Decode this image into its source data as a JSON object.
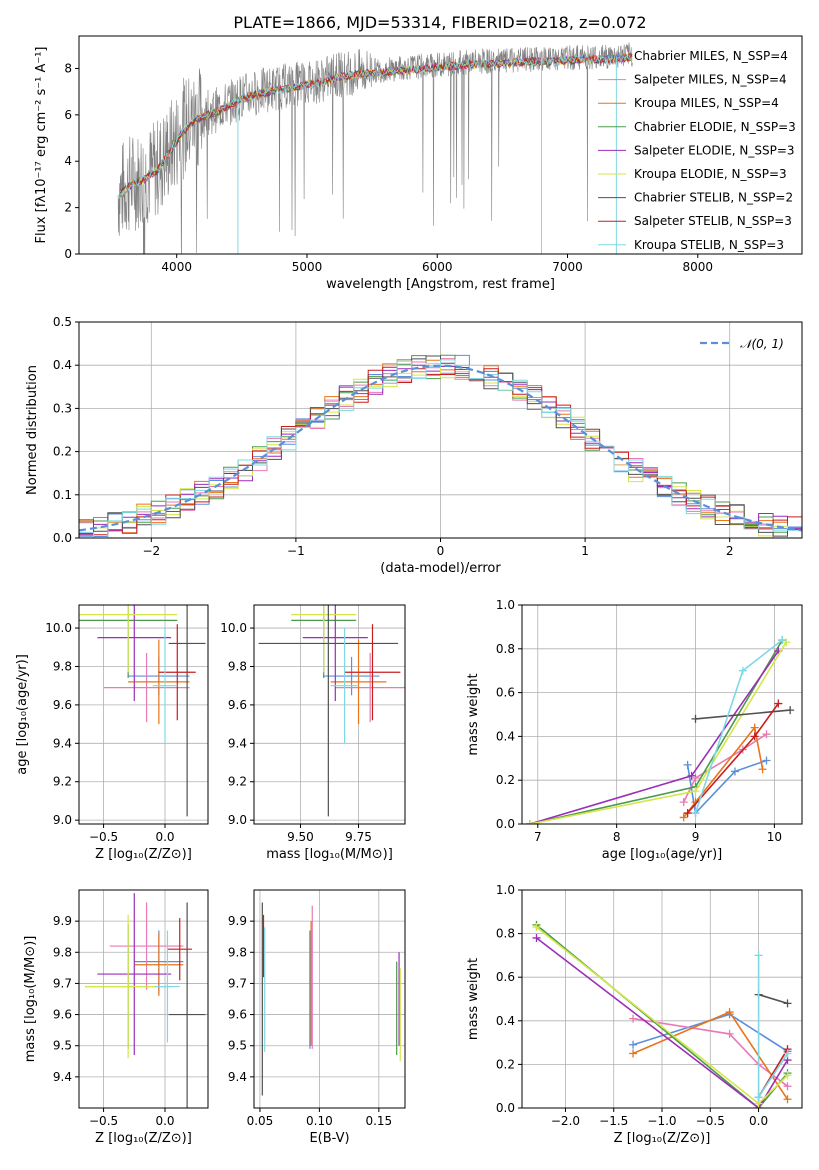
{
  "colors": {
    "Chabrier MILES": "#5b8fdb",
    "Salpeter MILES": "#e87ab4",
    "Kroupa MILES": "#e8741c",
    "Chabrier ELODIE": "#4c9a4c",
    "Salpeter ELODIE": "#9b2fb8",
    "Kroupa ELODIE": "#d4e64a",
    "Chabrier STELIB": "#505050",
    "Salpeter STELIB": "#c81e1e",
    "Kroupa STELIB": "#7fd8e4",
    "data": "#808080",
    "normal": "#5b8fdb"
  },
  "chart_data": [
    {
      "id": "spectrum",
      "type": "line",
      "title": "PLATE=1866, MJD=53314, FIBERID=0218, z=0.072",
      "xlabel": "wavelength [Angstrom, rest frame]",
      "ylabel": "Flux [fλ10⁻¹⁷ erg cm⁻² s⁻¹ A⁻¹]",
      "xlim": [
        3250,
        8800
      ],
      "ylim": [
        0,
        9.4
      ],
      "xticks": [
        "4000",
        "5000",
        "6000",
        "7000",
        "8000"
      ],
      "yticks": [
        "0",
        "2",
        "4",
        "6",
        "8"
      ],
      "legend_position": "right",
      "legend": [
        "Chabrier MILES, N_SSP=4",
        "Salpeter MILES, N_SSP=4",
        "Kroupa MILES, N_SSP=4",
        "Chabrier ELODIE, N_SSP=3",
        "Salpeter ELODIE, N_SSP=3",
        "Kroupa ELODIE, N_SSP=3",
        "Chabrier STELIB, N_SSP=2",
        "Salpeter STELIB, N_SSP=3",
        "Kroupa STELIB, N_SSP=3"
      ],
      "continuum": {
        "x": [
          3550,
          3650,
          3750,
          3850,
          3950,
          4050,
          4150,
          4300,
          4500,
          4700,
          4900,
          5100,
          5300,
          5500,
          5700,
          5900,
          6100,
          6300,
          6500,
          6700,
          6900,
          7100,
          7300,
          7500
        ],
        "y": [
          2.6,
          3.1,
          3.3,
          3.7,
          4.5,
          5.4,
          5.9,
          6.2,
          6.8,
          7.1,
          7.3,
          7.5,
          7.8,
          7.9,
          8.0,
          8.1,
          8.2,
          8.3,
          8.3,
          8.4,
          8.4,
          8.5,
          8.5,
          8.6
        ]
      }
    },
    {
      "id": "residuals",
      "type": "step",
      "xlabel": "(data-model)/error",
      "ylabel": "Normed distribution",
      "xlim": [
        -2.5,
        2.5
      ],
      "ylim": [
        0,
        0.5
      ],
      "xticks": [
        "−2",
        "−1",
        "0",
        "1",
        "2"
      ],
      "yticks": [
        "0.0",
        "0.1",
        "0.2",
        "0.3",
        "0.4",
        "0.5"
      ],
      "legend_position": "top-right",
      "legend": [
        "𝒩(0, 1)"
      ]
    },
    {
      "id": "age-vs-Z",
      "type": "errorbar",
      "xlabel": "Z [log₁₀(Z/Z⊙)]",
      "ylabel": "age  [log₁₀(age/yr)]",
      "xlim": [
        -0.7,
        0.35
      ],
      "ylim": [
        8.98,
        10.12
      ],
      "xticks": [
        "−0.5",
        "0.0"
      ],
      "yticks": [
        "9.0",
        "9.2",
        "9.4",
        "9.6",
        "9.8",
        "10.0"
      ],
      "points": [
        {
          "series": "Chabrier MILES",
          "x": -0.05,
          "xe": 0.25,
          "y": 9.75,
          "ye": 0.1
        },
        {
          "series": "Salpeter MILES",
          "x": -0.15,
          "xe": 0.35,
          "y": 9.69,
          "ye": 0.18
        },
        {
          "series": "Kroupa MILES",
          "x": -0.05,
          "xe": 0.25,
          "y": 9.72,
          "ye": 0.22
        },
        {
          "series": "Chabrier ELODIE",
          "x": -0.3,
          "xe": 0.4,
          "y": 10.04,
          "ye": 0.3
        },
        {
          "series": "Salpeter ELODIE",
          "x": -0.25,
          "xe": 0.3,
          "y": 9.95,
          "ye": 0.33
        },
        {
          "series": "Kroupa ELODIE",
          "x": -0.3,
          "xe": 0.4,
          "y": 10.07,
          "ye": 0.3
        },
        {
          "series": "Chabrier STELIB",
          "x": 0.18,
          "xe": 0.15,
          "y": 9.92,
          "ye": 0.9
        },
        {
          "series": "Salpeter STELIB",
          "x": 0.1,
          "xe": 0.15,
          "y": 9.77,
          "ye": 0.25
        },
        {
          "series": "Kroupa STELIB",
          "x": 0.0,
          "xe": 0.1,
          "y": 9.7,
          "ye": 0.3
        }
      ]
    },
    {
      "id": "age-vs-mass",
      "type": "errorbar",
      "xlabel": "mass [log₁₀(M/M⊙)]",
      "xlim": [
        9.3,
        9.95
      ],
      "ylim": [
        8.98,
        10.12
      ],
      "xticks": [
        "9.50",
        "9.75"
      ],
      "yticks": [
        "9.0",
        "9.2",
        "9.4",
        "9.6",
        "9.8",
        "10.0"
      ],
      "points": [
        {
          "series": "Chabrier MILES",
          "x": 9.72,
          "xe": 0.12,
          "y": 9.75,
          "ye": 0.1
        },
        {
          "series": "Salpeter MILES",
          "x": 9.8,
          "xe": 0.15,
          "y": 9.69,
          "ye": 0.18
        },
        {
          "series": "Kroupa MILES",
          "x": 9.75,
          "xe": 0.12,
          "y": 9.72,
          "ye": 0.22
        },
        {
          "series": "Chabrier ELODIE",
          "x": 9.6,
          "xe": 0.14,
          "y": 10.04,
          "ye": 0.3
        },
        {
          "series": "Salpeter ELODIE",
          "x": 9.65,
          "xe": 0.14,
          "y": 9.95,
          "ye": 0.33
        },
        {
          "series": "Kroupa ELODIE",
          "x": 9.6,
          "xe": 0.14,
          "y": 10.07,
          "ye": 0.3
        },
        {
          "series": "Chabrier STELIB",
          "x": 9.62,
          "xe": 0.3,
          "y": 9.92,
          "ye": 0.9
        },
        {
          "series": "Salpeter STELIB",
          "x": 9.81,
          "xe": 0.12,
          "y": 9.77,
          "ye": 0.25
        },
        {
          "series": "Kroupa STELIB",
          "x": 9.69,
          "xe": 0.06,
          "y": 9.7,
          "ye": 0.3
        }
      ]
    },
    {
      "id": "weight-vs-age",
      "type": "line",
      "xlabel": "age  [log₁₀(age/yr)]",
      "ylabel": "mass weight",
      "xlim": [
        6.8,
        10.35
      ],
      "ylim": [
        0,
        1.0
      ],
      "xticks": [
        "7",
        "8",
        "9",
        "10"
      ],
      "yticks": [
        "0.0",
        "0.2",
        "0.4",
        "0.6",
        "0.8",
        "1.0"
      ],
      "series": [
        {
          "name": "Chabrier MILES",
          "x": [
            8.9,
            9.0,
            9.5,
            9.9
          ],
          "y": [
            0.27,
            0.05,
            0.24,
            0.29
          ]
        },
        {
          "name": "Salpeter MILES",
          "x": [
            8.85,
            9.0,
            9.6,
            9.9
          ],
          "y": [
            0.1,
            0.21,
            0.34,
            0.41
          ]
        },
        {
          "name": "Kroupa MILES",
          "x": [
            8.85,
            9.0,
            9.75,
            9.85
          ],
          "y": [
            0.03,
            0.1,
            0.44,
            0.25
          ]
        },
        {
          "name": "Chabrier ELODIE",
          "x": [
            6.9,
            9.0,
            10.1
          ],
          "y": [
            0.0,
            0.17,
            0.84
          ]
        },
        {
          "name": "Salpeter ELODIE",
          "x": [
            6.9,
            8.95,
            10.05
          ],
          "y": [
            0.0,
            0.22,
            0.79
          ]
        },
        {
          "name": "Kroupa ELODIE",
          "x": [
            6.9,
            9.0,
            10.15
          ],
          "y": [
            0.0,
            0.15,
            0.83
          ]
        },
        {
          "name": "Chabrier STELIB",
          "x": [
            9.0,
            10.2
          ],
          "y": [
            0.48,
            0.52
          ]
        },
        {
          "name": "Salpeter STELIB",
          "x": [
            8.9,
            9.75,
            10.05
          ],
          "y": [
            0.05,
            0.4,
            0.55
          ]
        },
        {
          "name": "Kroupa STELIB",
          "x": [
            9.0,
            9.6,
            10.1
          ],
          "y": [
            0.05,
            0.7,
            0.84
          ]
        }
      ]
    },
    {
      "id": "mass-vs-Z",
      "type": "errorbar",
      "xlabel": "Z [log₁₀(Z/Z⊙)]",
      "ylabel": "mass [log₁₀(M/M⊙)]",
      "xlim": [
        -0.7,
        0.35
      ],
      "ylim": [
        9.3,
        10.0
      ],
      "xticks": [
        "−0.5",
        "0.0"
      ],
      "yticks": [
        "9.4",
        "9.5",
        "9.6",
        "9.7",
        "9.8",
        "9.9"
      ],
      "points": [
        {
          "series": "Chabrier MILES",
          "x": -0.05,
          "xe": 0.2,
          "y": 9.77,
          "ye": 0.1
        },
        {
          "series": "Salpeter MILES",
          "x": -0.15,
          "xe": 0.3,
          "y": 9.82,
          "ye": 0.14
        },
        {
          "series": "Kroupa MILES",
          "x": -0.05,
          "xe": 0.2,
          "y": 9.76,
          "ye": 0.1
        },
        {
          "series": "Chabrier ELODIE",
          "x": -0.3,
          "xe": 0.35,
          "y": 9.69,
          "ye": 0.2
        },
        {
          "series": "Salpeter ELODIE",
          "x": -0.25,
          "xe": 0.3,
          "y": 9.73,
          "ye": 0.26
        },
        {
          "series": "Kroupa ELODIE",
          "x": -0.3,
          "xe": 0.35,
          "y": 9.69,
          "ye": 0.23
        },
        {
          "series": "Chabrier STELIB",
          "x": 0.18,
          "xe": 0.15,
          "y": 9.6,
          "ye": 0.36
        },
        {
          "series": "Salpeter STELIB",
          "x": 0.12,
          "xe": 0.1,
          "y": 9.81,
          "ye": 0.1
        },
        {
          "series": "Kroupa STELIB",
          "x": 0.02,
          "xe": 0.1,
          "y": 9.69,
          "ye": 0.18
        }
      ]
    },
    {
      "id": "mass-vs-EBV",
      "type": "errorbar",
      "xlabel": "E(B-V)",
      "xlim": [
        0.045,
        0.172
      ],
      "ylim": [
        9.3,
        10.0
      ],
      "xticks": [
        "0.05",
        "0.10",
        "0.15"
      ],
      "yticks": [
        "9.4",
        "9.5",
        "9.6",
        "9.7",
        "9.8",
        "9.9"
      ],
      "points": [
        {
          "series": "Chabrier MILES",
          "x": 0.092,
          "xe": 0,
          "y": 9.68,
          "ye": 0.19
        },
        {
          "series": "Salpeter MILES",
          "x": 0.094,
          "xe": 0,
          "y": 9.72,
          "ye": 0.23
        },
        {
          "series": "Kroupa MILES",
          "x": 0.093,
          "xe": 0,
          "y": 9.7,
          "ye": 0.2
        },
        {
          "series": "Chabrier ELODIE",
          "x": 0.165,
          "xe": 0,
          "y": 9.62,
          "ye": 0.15
        },
        {
          "series": "Salpeter ELODIE",
          "x": 0.167,
          "xe": 0,
          "y": 9.65,
          "ye": 0.15
        },
        {
          "series": "Kroupa ELODIE",
          "x": 0.168,
          "xe": 0,
          "y": 9.6,
          "ye": 0.15
        },
        {
          "series": "Chabrier STELIB",
          "x": 0.052,
          "xe": 0,
          "y": 9.65,
          "ye": 0.31
        },
        {
          "series": "Salpeter STELIB",
          "x": 0.053,
          "xe": 0,
          "y": 9.82,
          "ye": 0.1
        },
        {
          "series": "Kroupa STELIB",
          "x": 0.054,
          "xe": 0,
          "y": 9.68,
          "ye": 0.2
        }
      ]
    },
    {
      "id": "weight-vs-Z",
      "type": "line",
      "xlabel": "Z [log₁₀(Z/Z⊙)]",
      "ylabel": "mass weight",
      "xlim": [
        -2.45,
        0.45
      ],
      "ylim": [
        0,
        1.0
      ],
      "xticks": [
        "−2.0",
        "−1.5",
        "−1.0",
        "−0.5",
        "0.0"
      ],
      "yticks": [
        "0.0",
        "0.2",
        "0.4",
        "0.6",
        "0.8",
        "1.0"
      ],
      "series": [
        {
          "name": "Chabrier MILES",
          "x": [
            -1.3,
            -0.3,
            0.3
          ],
          "y": [
            0.29,
            0.43,
            0.26
          ]
        },
        {
          "name": "Salpeter MILES",
          "x": [
            -1.3,
            -0.3,
            0.0,
            0.3
          ],
          "y": [
            0.41,
            0.34,
            0.2,
            0.1
          ]
        },
        {
          "name": "Kroupa MILES",
          "x": [
            -1.3,
            -0.3,
            0.3
          ],
          "y": [
            0.25,
            0.44,
            0.04
          ]
        },
        {
          "name": "Chabrier ELODIE",
          "x": [
            -2.3,
            0.0,
            0.3
          ],
          "y": [
            0.84,
            0.0,
            0.16
          ]
        },
        {
          "name": "Salpeter ELODIE",
          "x": [
            -2.3,
            0.0,
            0.3
          ],
          "y": [
            0.78,
            0.0,
            0.22
          ]
        },
        {
          "name": "Kroupa ELODIE",
          "x": [
            -2.3,
            0.0,
            0.3
          ],
          "y": [
            0.83,
            0.02,
            0.15
          ]
        },
        {
          "name": "Chabrier STELIB",
          "x": [
            0.0,
            0.3
          ],
          "y": [
            0.52,
            0.48
          ]
        },
        {
          "name": "Salpeter STELIB",
          "x": [
            0.0,
            0.3
          ],
          "y": [
            0.05,
            0.27
          ]
        },
        {
          "name": "Kroupa STELIB",
          "x": [
            0.0,
            0.0,
            0.3
          ],
          "y": [
            0.7,
            0.05,
            0.25
          ]
        }
      ]
    }
  ]
}
